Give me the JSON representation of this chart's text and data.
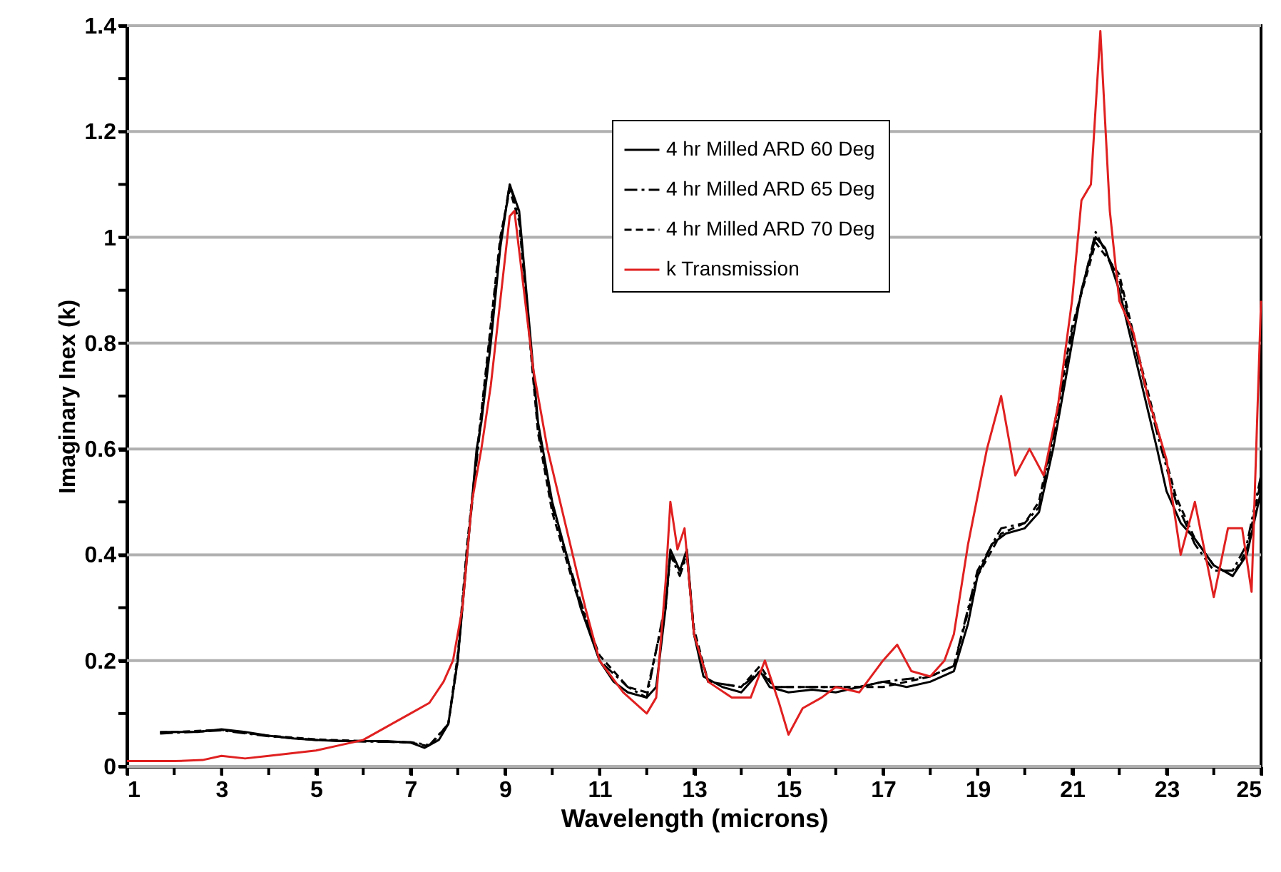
{
  "chart_data": {
    "type": "line",
    "xlabel": "Wavelength (microns)",
    "ylabel": "Imaginary Inex (k)",
    "xlim": [
      1,
      25
    ],
    "ylim": [
      0,
      1.4
    ],
    "xticks": [
      1,
      {
        "value": 2,
        "label": null
      },
      3,
      {
        "value": 4,
        "label": null
      },
      5,
      {
        "value": 6,
        "label": null
      },
      7,
      {
        "value": 8,
        "label": null
      },
      9,
      {
        "value": 10,
        "label": null
      },
      11,
      {
        "value": 12,
        "label": null
      },
      13,
      {
        "value": 14,
        "label": null
      },
      15,
      {
        "value": 16,
        "label": null
      },
      17,
      {
        "value": 18,
        "label": null
      },
      19,
      {
        "value": 20,
        "label": null
      },
      21,
      {
        "value": 22,
        "label": null
      },
      23,
      {
        "value": 24,
        "label": null
      },
      25
    ],
    "yticks": [
      0,
      {
        "value": 0.1,
        "label": null
      },
      0.2,
      {
        "value": 0.3,
        "label": null
      },
      0.4,
      {
        "value": 0.5,
        "label": null
      },
      0.6,
      {
        "value": 0.7,
        "label": null
      },
      0.8,
      {
        "value": 0.9,
        "label": null
      },
      1,
      {
        "value": 1.1,
        "label": null
      },
      1.2,
      {
        "value": 1.3,
        "label": null
      },
      1.4
    ],
    "grid": "y",
    "legend": "top",
    "marker": "none",
    "series": [
      {
        "name": "4 hr Milled ARD 60 Deg",
        "color": "#000000",
        "line_style": "solid",
        "x": [
          1.7,
          2.5,
          3.0,
          3.5,
          4.0,
          4.5,
          5.0,
          5.5,
          6.0,
          6.5,
          7.0,
          7.3,
          7.6,
          7.8,
          8.0,
          8.2,
          8.4,
          8.5,
          8.7,
          8.9,
          9.1,
          9.3,
          9.5,
          9.7,
          10.0,
          10.3,
          10.6,
          11.0,
          11.3,
          11.6,
          12.0,
          12.2,
          12.4,
          12.5,
          12.7,
          12.85,
          13.0,
          13.2,
          13.6,
          14.0,
          14.4,
          14.6,
          15.0,
          15.5,
          16.0,
          16.5,
          17.0,
          17.5,
          18.0,
          18.5,
          18.8,
          19.0,
          19.3,
          19.6,
          20.0,
          20.3,
          20.6,
          20.9,
          21.2,
          21.5,
          21.7,
          22.0,
          22.4,
          22.8,
          23.0,
          23.3,
          23.6,
          24.0,
          24.4,
          24.7,
          25.0
        ],
        "values": [
          0.065,
          0.065,
          0.07,
          0.065,
          0.058,
          0.053,
          0.05,
          0.048,
          0.048,
          0.048,
          0.045,
          0.035,
          0.05,
          0.08,
          0.2,
          0.4,
          0.6,
          0.65,
          0.8,
          0.98,
          1.1,
          1.05,
          0.85,
          0.65,
          0.5,
          0.4,
          0.3,
          0.2,
          0.16,
          0.14,
          0.13,
          0.15,
          0.3,
          0.41,
          0.37,
          0.41,
          0.25,
          0.17,
          0.15,
          0.14,
          0.18,
          0.15,
          0.14,
          0.145,
          0.14,
          0.15,
          0.16,
          0.15,
          0.16,
          0.18,
          0.27,
          0.36,
          0.42,
          0.44,
          0.45,
          0.48,
          0.6,
          0.75,
          0.9,
          1.0,
          0.98,
          0.9,
          0.75,
          0.6,
          0.52,
          0.46,
          0.43,
          0.38,
          0.36,
          0.4,
          0.52
        ]
      },
      {
        "name": "4 hr Milled ARD 65 Deg",
        "color": "#000000",
        "line_style": "dashdot",
        "x": [
          1.7,
          3.0,
          4.0,
          5.0,
          6.0,
          7.0,
          7.4,
          7.8,
          8.0,
          8.2,
          8.5,
          8.9,
          9.1,
          9.3,
          9.5,
          9.7,
          10.0,
          10.5,
          11.0,
          11.6,
          12.0,
          12.4,
          12.5,
          12.7,
          12.85,
          13.0,
          13.3,
          14.0,
          14.4,
          14.7,
          15.5,
          16.5,
          17.0,
          18.0,
          18.5,
          19.0,
          19.5,
          20.0,
          20.3,
          20.6,
          21.0,
          21.5,
          22.0,
          22.4,
          22.8,
          23.2,
          23.6,
          24.0,
          24.4,
          24.7,
          25.0
        ],
        "values": [
          0.062,
          0.068,
          0.057,
          0.05,
          0.047,
          0.046,
          0.04,
          0.08,
          0.2,
          0.41,
          0.66,
          0.99,
          1.1,
          1.04,
          0.84,
          0.64,
          0.49,
          0.34,
          0.2,
          0.15,
          0.13,
          0.31,
          0.4,
          0.36,
          0.4,
          0.25,
          0.16,
          0.15,
          0.18,
          0.15,
          0.15,
          0.15,
          0.16,
          0.17,
          0.19,
          0.37,
          0.45,
          0.46,
          0.49,
          0.62,
          0.82,
          1.01,
          0.92,
          0.77,
          0.63,
          0.5,
          0.42,
          0.37,
          0.37,
          0.42,
          0.55
        ]
      },
      {
        "name": "4 hr Milled ARD 70 Deg",
        "color": "#000000",
        "line_style": "dashed",
        "x": [
          1.7,
          3.0,
          4.0,
          5.0,
          6.0,
          7.0,
          7.4,
          7.8,
          8.0,
          8.2,
          8.5,
          8.9,
          9.1,
          9.3,
          9.5,
          9.7,
          10.0,
          10.5,
          11.0,
          11.6,
          12.0,
          12.4,
          12.5,
          12.7,
          12.85,
          13.0,
          13.3,
          14.0,
          14.4,
          14.7,
          15.5,
          16.5,
          17.0,
          18.0,
          18.5,
          19.0,
          19.5,
          20.0,
          20.3,
          20.6,
          21.0,
          21.5,
          22.0,
          22.4,
          22.8,
          23.2,
          23.6,
          24.0,
          24.4,
          24.7,
          25.0
        ],
        "values": [
          0.064,
          0.069,
          0.058,
          0.051,
          0.048,
          0.045,
          0.038,
          0.08,
          0.21,
          0.42,
          0.67,
          1.0,
          1.09,
          1.03,
          0.83,
          0.63,
          0.48,
          0.33,
          0.21,
          0.15,
          0.14,
          0.3,
          0.4,
          0.37,
          0.4,
          0.26,
          0.16,
          0.15,
          0.19,
          0.15,
          0.15,
          0.15,
          0.15,
          0.17,
          0.19,
          0.36,
          0.44,
          0.46,
          0.5,
          0.63,
          0.83,
          0.99,
          0.93,
          0.78,
          0.64,
          0.51,
          0.43,
          0.38,
          0.36,
          0.41,
          0.54
        ]
      },
      {
        "name": "k Transmission",
        "color": "#e02020",
        "line_style": "solid",
        "x": [
          1.0,
          2.0,
          2.6,
          3.0,
          3.5,
          4.0,
          4.5,
          5.0,
          5.5,
          6.0,
          6.5,
          7.0,
          7.4,
          7.7,
          7.9,
          8.1,
          8.3,
          8.5,
          8.7,
          8.9,
          9.1,
          9.2,
          9.4,
          9.6,
          9.9,
          10.3,
          10.7,
          11.0,
          11.5,
          12.0,
          12.2,
          12.4,
          12.5,
          12.65,
          12.8,
          13.0,
          13.3,
          13.8,
          14.2,
          14.5,
          14.8,
          15.0,
          15.3,
          15.7,
          16.0,
          16.5,
          17.0,
          17.3,
          17.6,
          18.0,
          18.3,
          18.5,
          18.8,
          19.2,
          19.5,
          19.8,
          20.1,
          20.4,
          20.7,
          21.0,
          21.2,
          21.4,
          21.6,
          21.8,
          22.0,
          22.3,
          22.6,
          23.0,
          23.3,
          23.6,
          24.0,
          24.3,
          24.6,
          24.8,
          25.0
        ],
        "values": [
          0.01,
          0.01,
          0.012,
          0.02,
          0.015,
          0.02,
          0.025,
          0.03,
          0.04,
          0.05,
          0.075,
          0.1,
          0.12,
          0.16,
          0.2,
          0.3,
          0.5,
          0.6,
          0.72,
          0.88,
          1.04,
          1.05,
          0.9,
          0.75,
          0.6,
          0.45,
          0.3,
          0.2,
          0.14,
          0.1,
          0.13,
          0.35,
          0.5,
          0.41,
          0.45,
          0.25,
          0.16,
          0.13,
          0.13,
          0.2,
          0.12,
          0.06,
          0.11,
          0.13,
          0.15,
          0.14,
          0.2,
          0.23,
          0.18,
          0.17,
          0.2,
          0.25,
          0.42,
          0.6,
          0.7,
          0.55,
          0.6,
          0.55,
          0.68,
          0.88,
          1.07,
          1.1,
          1.39,
          1.05,
          0.88,
          0.82,
          0.7,
          0.58,
          0.4,
          0.5,
          0.32,
          0.45,
          0.45,
          0.33,
          0.88
        ]
      }
    ]
  }
}
